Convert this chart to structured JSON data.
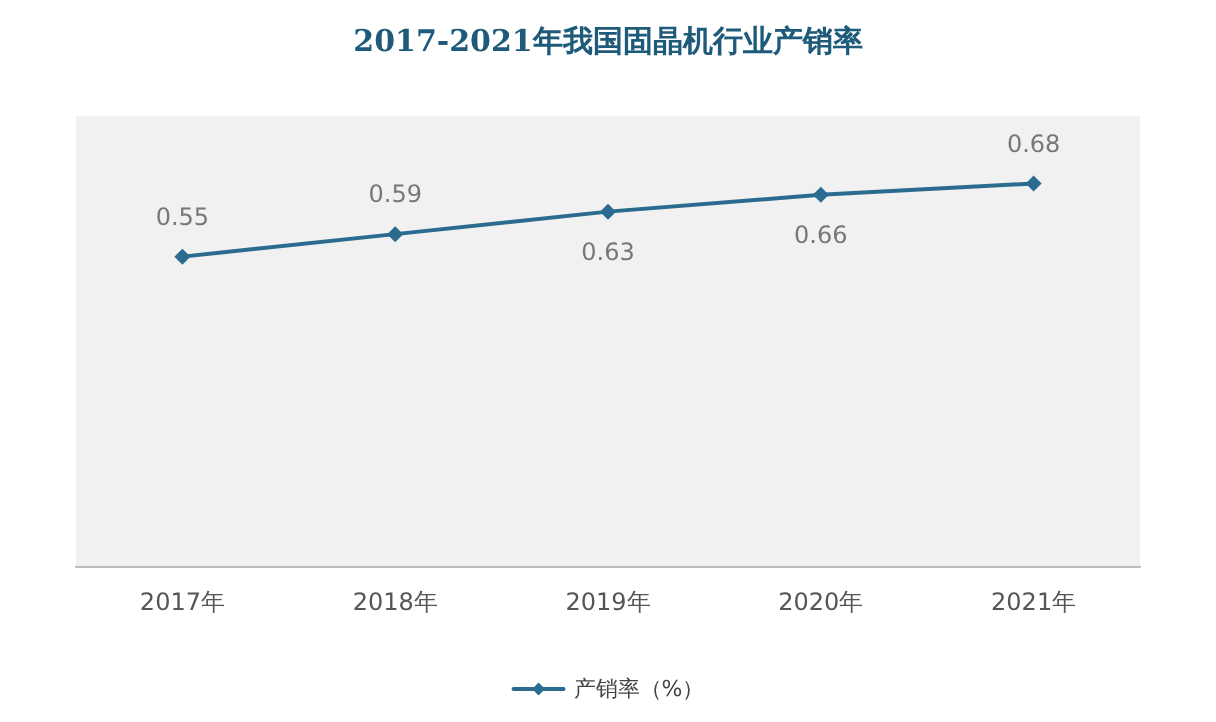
{
  "chart_data": {
    "type": "line",
    "title": "2017-2021年我国固晶机行业产销率",
    "categories": [
      "2017年",
      "2018年",
      "2019年",
      "2020年",
      "2021年"
    ],
    "series": [
      {
        "name": "产销率（%）",
        "color": "#2a6b8f",
        "values": [
          0.55,
          0.59,
          0.63,
          0.66,
          0.68
        ]
      }
    ],
    "data_labels": true,
    "legend": "bottom",
    "marker": "diamond",
    "line_style": "solid",
    "grid": false
  }
}
